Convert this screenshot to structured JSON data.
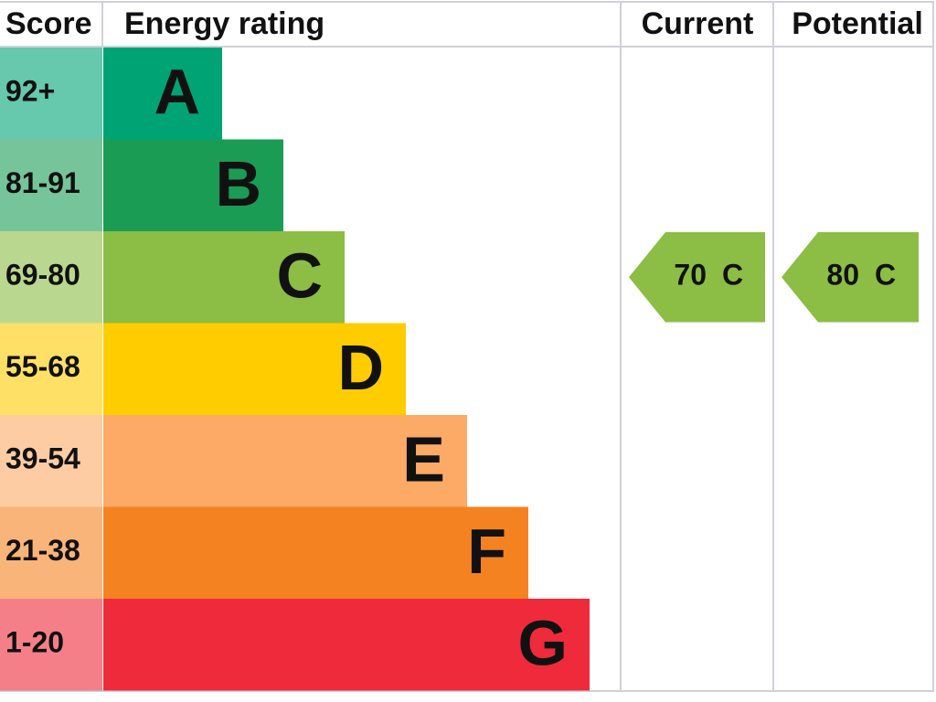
{
  "chart_data": {
    "type": "epc",
    "headers": {
      "score": "Score",
      "rating": "Energy rating",
      "current": "Current",
      "potential": "Potential"
    },
    "categories": [
      "92+",
      "81-91",
      "69-80",
      "55-68",
      "39-54",
      "21-38",
      "1-20"
    ],
    "letters": [
      "A",
      "B",
      "C",
      "D",
      "E",
      "F",
      "G"
    ],
    "colors": [
      "#00a474",
      "#1a9c55",
      "#8cbd44",
      "#ffcc00",
      "#fcaa65",
      "#f58220",
      "#ef2a3b"
    ],
    "current": {
      "value": 70,
      "letter": "C"
    },
    "potential": {
      "value": 80,
      "letter": "C"
    }
  }
}
